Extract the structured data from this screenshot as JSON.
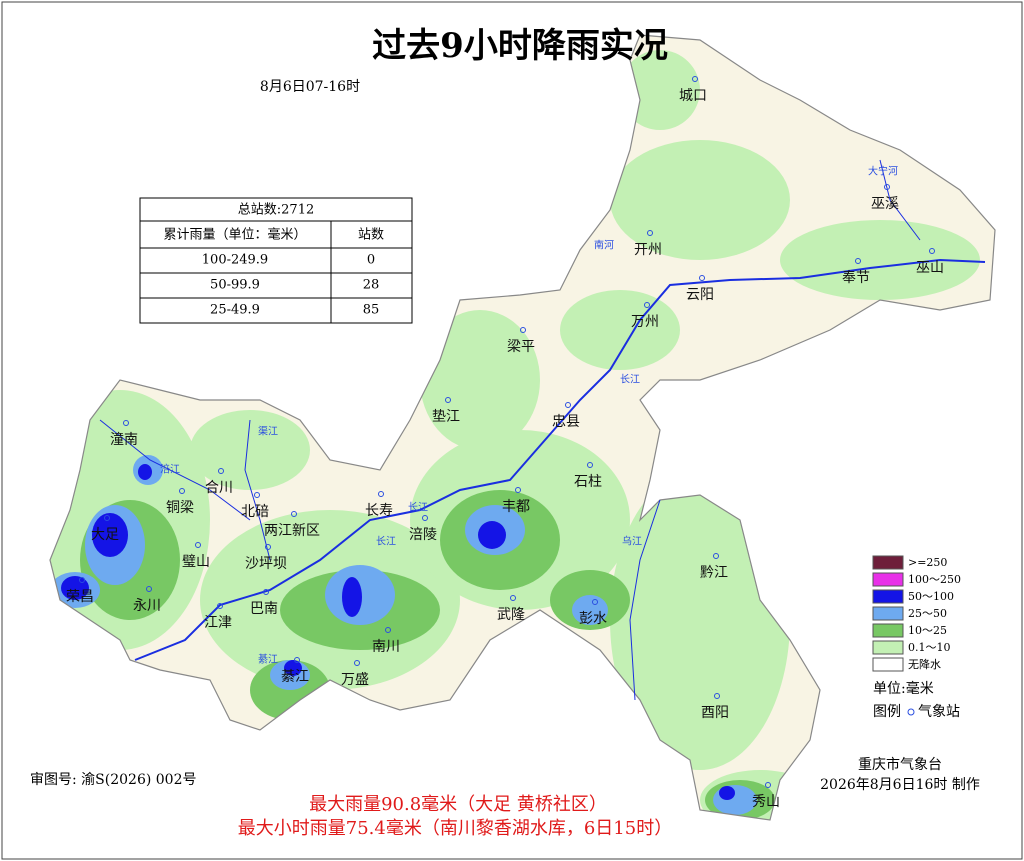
{
  "header": {
    "title": "过去9小时降雨实况",
    "subtitle": "8月6日07-16时"
  },
  "table": {
    "total": "总站数:2712",
    "columns": [
      "累计雨量（单位：毫米）",
      "站数"
    ],
    "rows": [
      [
        "100-249.9",
        0
      ],
      [
        "50-99.9",
        28
      ],
      [
        "25-49.9",
        85
      ]
    ]
  },
  "places": [
    "城口",
    "巫溪",
    "开州",
    "云阳",
    "奉节",
    "巫山",
    "万州",
    "梁平",
    "垫江",
    "忠县",
    "石柱",
    "丰都",
    "长寿",
    "涪陵",
    "两江新区",
    "北碚",
    "合川",
    "潼南",
    "铜梁",
    "大足",
    "璧山",
    "沙坪坝",
    "荣昌",
    "永川",
    "江津",
    "巴南",
    "綦江",
    "万盛",
    "南川",
    "武隆",
    "彭水",
    "黔江",
    "酉阳",
    "秀山"
  ],
  "rivers": [
    "大宁河",
    "南河",
    "长江",
    "长江",
    "长江",
    "涪江",
    "渠江",
    "乌江",
    "綦江"
  ],
  "legend": {
    "items": [
      {
        "label": ">=250",
        "color": "#6e1e3a"
      },
      {
        "label": "100～250",
        "color": "#e830e8"
      },
      {
        "label": "50～100",
        "color": "#1414e6"
      },
      {
        "label": "25～50",
        "color": "#6eaaf0"
      },
      {
        "label": "10～25",
        "color": "#78c864"
      },
      {
        "label": "0.1～10",
        "color": "#c3f0b4"
      },
      {
        "label": "无降水",
        "color": "#ffffff"
      }
    ],
    "unit": "单位:毫米",
    "key": "图例",
    "station": "气象站"
  },
  "footer": {
    "approval": "审图号: 渝S(2026) 002号",
    "max_rain": "最大雨量90.8毫米（大足 黄桥社区）",
    "max_hourly": "最大小时雨量75.4毫米（南川黎香湖水库，6日15时）",
    "agency": "重庆市气象台",
    "made": "2026年8月6日16时 制作"
  }
}
